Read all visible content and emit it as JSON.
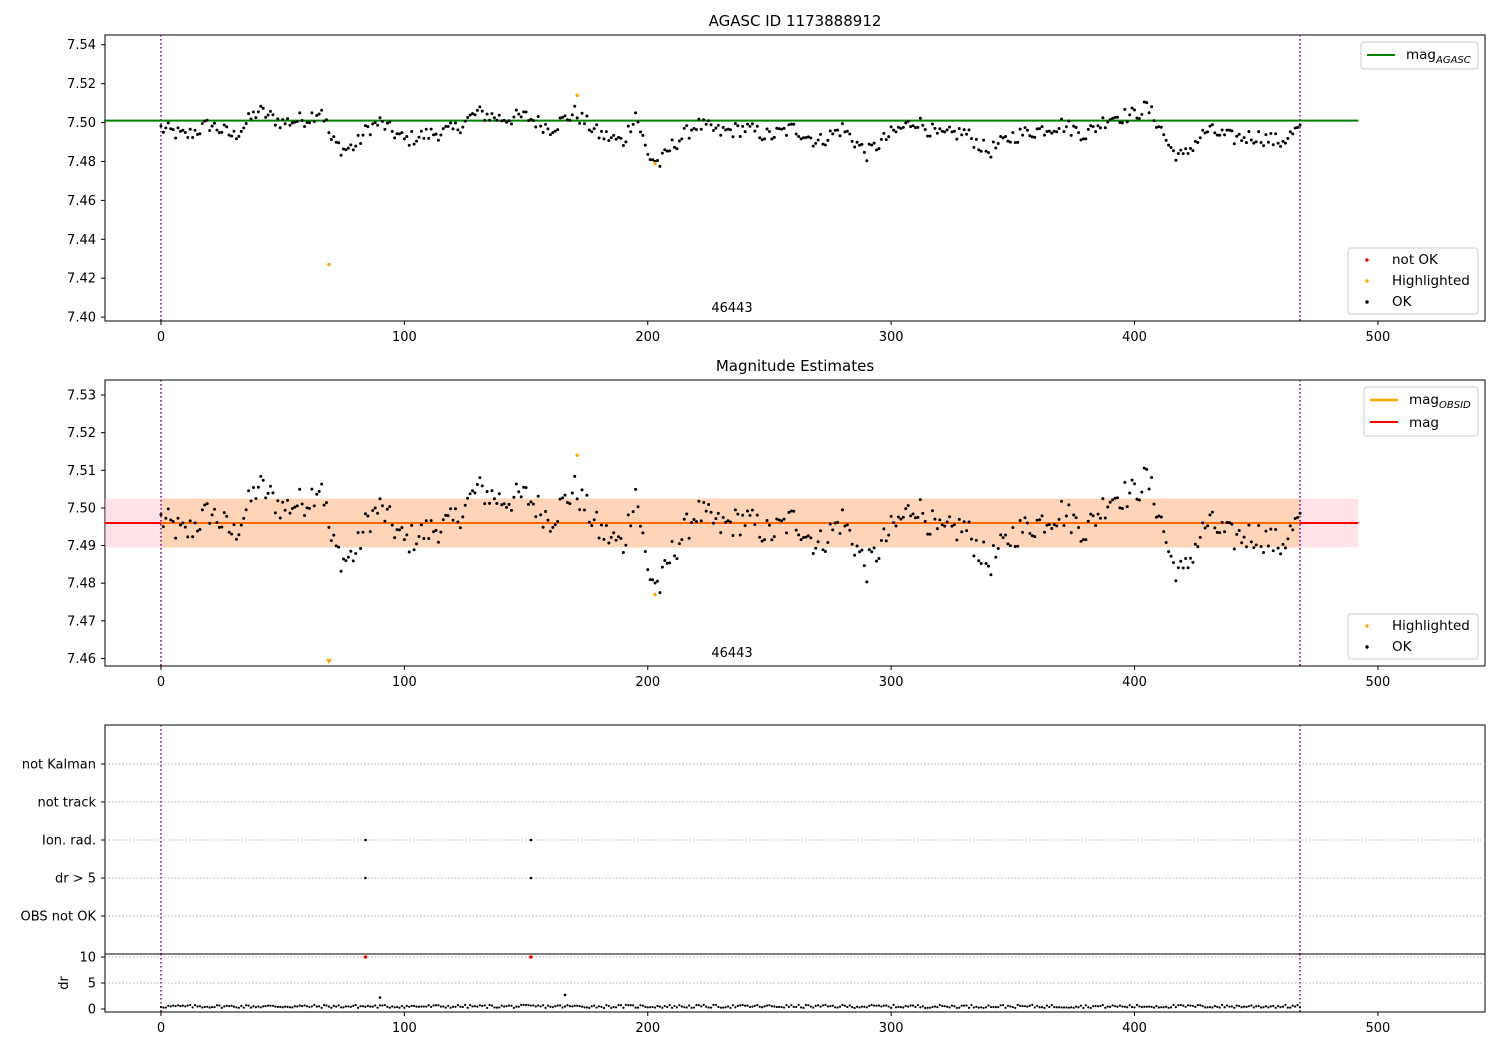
{
  "chart_data": [
    {
      "type": "scatter",
      "title": "AGASC ID 1173888912",
      "annotation": "46443",
      "xlim": [
        -23,
        544
      ],
      "ylim": [
        7.398,
        7.545
      ],
      "xticks": [
        0,
        100,
        200,
        300,
        400,
        500
      ],
      "yticks": [
        7.4,
        7.42,
        7.44,
        7.46,
        7.48,
        7.5,
        7.52,
        7.54
      ],
      "ytick_labels": [
        "7.40",
        "7.42",
        "7.44",
        "7.46",
        "7.48",
        "7.50",
        "7.52",
        "7.54"
      ],
      "vlines": [
        0,
        468
      ],
      "hline": {
        "name": "mag",
        "name_sub": "AGASC",
        "value": 7.501,
        "x_range": [
          0,
          492
        ],
        "color": "#008000"
      },
      "legend_top": [
        {
          "label": "mag",
          "sub": "AGASC",
          "color": "#008000",
          "kind": "line"
        }
      ],
      "legend_bottom": [
        {
          "label": "not OK",
          "color": "#ff0000",
          "kind": "dot"
        },
        {
          "label": "Highlighted",
          "color": "#ffa500",
          "kind": "dot"
        },
        {
          "label": "OK",
          "color": "#000000",
          "kind": "dot"
        }
      ],
      "highlighted_points": [
        [
          69,
          7.427
        ],
        [
          171,
          7.514
        ],
        [
          203,
          7.479
        ]
      ],
      "ok_series_description": "468 observations with mag around 7.475-7.512, generated in script from curve values below",
      "ok_curve_x": [
        0,
        10,
        20,
        30,
        40,
        50,
        60,
        66,
        70,
        75,
        80,
        85,
        90,
        100,
        110,
        120,
        130,
        140,
        150,
        160,
        170,
        180,
        190,
        195,
        200,
        205,
        210,
        220,
        230,
        240,
        250,
        260,
        270,
        280,
        290,
        300,
        310,
        320,
        330,
        340,
        350,
        360,
        370,
        380,
        390,
        400,
        405,
        410,
        415,
        420,
        425,
        430,
        440,
        450,
        460,
        468
      ],
      "ok_curve_y": [
        7.497,
        7.493,
        7.499,
        7.493,
        7.506,
        7.5,
        7.502,
        7.507,
        7.491,
        7.486,
        7.488,
        7.497,
        7.5,
        7.491,
        7.494,
        7.496,
        7.505,
        7.502,
        7.503,
        7.497,
        7.505,
        7.494,
        7.49,
        7.505,
        7.483,
        7.479,
        7.488,
        7.499,
        7.495,
        7.497,
        7.493,
        7.497,
        7.49,
        7.497,
        7.484,
        7.494,
        7.501,
        7.493,
        7.495,
        7.485,
        7.493,
        7.496,
        7.499,
        7.494,
        7.503,
        7.504,
        7.508,
        7.499,
        7.486,
        7.482,
        7.49,
        7.496,
        7.492,
        7.493,
        7.49,
        7.497
      ]
    },
    {
      "type": "scatter",
      "title": "Magnitude Estimates",
      "annotation": "46443",
      "xlim": [
        -23,
        544
      ],
      "ylim": [
        7.458,
        7.534
      ],
      "xticks": [
        0,
        100,
        200,
        300,
        400,
        500
      ],
      "yticks": [
        7.46,
        7.47,
        7.48,
        7.49,
        7.5,
        7.51,
        7.52,
        7.53
      ],
      "ytick_labels": [
        "7.46",
        "7.47",
        "7.48",
        "7.49",
        "7.50",
        "7.51",
        "7.52",
        "7.53"
      ],
      "vlines": [
        0,
        468
      ],
      "mag_line": {
        "value": 7.496,
        "color": "#ff0000",
        "x_range": [
          -23,
          492
        ]
      },
      "mag_obsid_line": {
        "value": 7.496,
        "color": "#ffa500",
        "x_range": [
          0,
          468
        ]
      },
      "band_mag": {
        "low": 7.4895,
        "high": 7.5025,
        "color": "#ffc0cb"
      },
      "band_obsid": {
        "low": 7.4895,
        "high": 7.5025,
        "color": "#ffd2b0"
      },
      "legend_top": [
        {
          "label": "mag",
          "sub": "OBSID",
          "color": "#ffa500",
          "kind": "line"
        },
        {
          "label": "mag",
          "sub": "",
          "color": "#ff0000",
          "kind": "line"
        }
      ],
      "legend_bottom": [
        {
          "label": "Highlighted",
          "color": "#ffa500",
          "kind": "dot"
        },
        {
          "label": "OK",
          "color": "#000000",
          "kind": "dot"
        }
      ],
      "highlighted_points": [
        [
          69,
          7.459
        ],
        [
          171,
          7.514
        ],
        [
          203,
          7.477
        ]
      ]
    },
    {
      "type": "scatter",
      "title": "",
      "flag_rows": [
        "not Kalman",
        "not track",
        "Ion. rad.",
        "dr > 5",
        "OBS not OK"
      ],
      "flag_points": [
        {
          "row": "Ion. rad.",
          "x": [
            84,
            152
          ]
        },
        {
          "row": "dr > 5",
          "x": [
            84,
            152
          ]
        }
      ],
      "xlim": [
        -23,
        544
      ],
      "vlines": [
        0,
        468
      ]
    },
    {
      "type": "scatter",
      "ylabel": "dr",
      "xlim": [
        -23,
        544
      ],
      "ylim": [
        -0.5,
        10.5
      ],
      "xticks": [
        0,
        100,
        200,
        300,
        400,
        500
      ],
      "yticks": [
        0,
        5,
        10
      ],
      "ytick_labels": [
        "0",
        "5",
        "10"
      ],
      "outliers_red": [
        [
          84,
          10
        ],
        [
          152,
          10
        ]
      ],
      "spikes": [
        [
          90,
          2.2
        ],
        [
          166,
          2.7
        ]
      ],
      "baseline_description": "dr values between 0.1 and 0.8 for all 468 observations",
      "vlines": [
        0,
        468
      ]
    }
  ]
}
